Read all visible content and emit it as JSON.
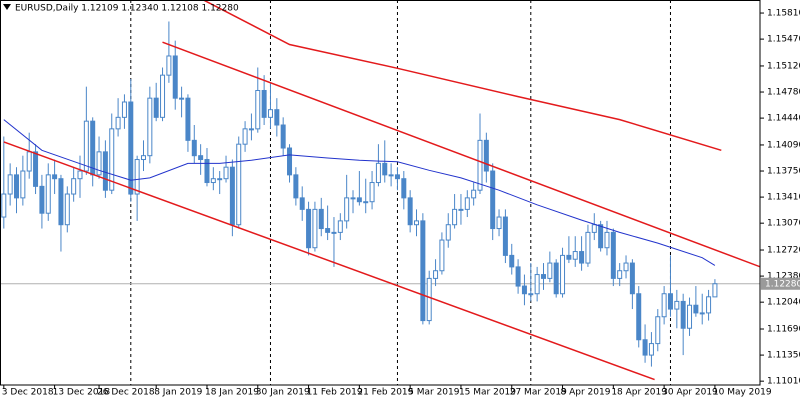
{
  "chart_data": {
    "type": "candlestick",
    "title": "EURUSD,Daily  1.12109 1.12340 1.12108 1.12280",
    "candle_color": "#4a86c8",
    "ylim": [
      1.1096,
      1.1598
    ],
    "xlim": [
      -0.6,
      119.1
    ],
    "yticks": [
      {
        "value": 1.1581,
        "label": "1.15810"
      },
      {
        "value": 1.1547,
        "label": "1.15470"
      },
      {
        "value": 1.1512,
        "label": "1.15120"
      },
      {
        "value": 1.1478,
        "label": "1.14780"
      },
      {
        "value": 1.1444,
        "label": "1.14440"
      },
      {
        "value": 1.1409,
        "label": "1.14090"
      },
      {
        "value": 1.1375,
        "label": "1.13750"
      },
      {
        "value": 1.1341,
        "label": "1.13410"
      },
      {
        "value": 1.1307,
        "label": "1.13070"
      },
      {
        "value": 1.1272,
        "label": "1.12720"
      },
      {
        "value": 1.1238,
        "label": "1.12380"
      },
      {
        "value": 1.1204,
        "label": "1.12040"
      },
      {
        "value": 1.1169,
        "label": "1.11690"
      },
      {
        "value": 1.1135,
        "label": "1.11350"
      },
      {
        "value": 1.1101,
        "label": "1.11010"
      }
    ],
    "xticks": [
      {
        "value": 0,
        "label": "3 Dec 2018"
      },
      {
        "value": 8,
        "label": "13 Dec 2018"
      },
      {
        "value": 15,
        "label": "26 Dec 2018"
      },
      {
        "value": 24,
        "label": "8 Jan 2019"
      },
      {
        "value": 32,
        "label": "18 Jan 2019"
      },
      {
        "value": 40,
        "label": "30 Jan 2019"
      },
      {
        "value": 48,
        "label": "11 Feb 2019"
      },
      {
        "value": 56,
        "label": "21 Feb 2019"
      },
      {
        "value": 64,
        "label": "5 Mar 2019"
      },
      {
        "value": 72,
        "label": "15 Mar 2019"
      },
      {
        "value": 80,
        "label": "27 Mar 2019"
      },
      {
        "value": 88,
        "label": "8 Apr 2019"
      },
      {
        "value": 96,
        "label": "18 Apr 2019"
      },
      {
        "value": 104,
        "label": "30 Apr 2019"
      },
      {
        "value": 112,
        "label": "10 May 2019"
      }
    ],
    "month_separators": [
      20,
      42,
      62,
      83,
      105
    ],
    "price_label": "1.12280",
    "ohlc": [
      [
        1.1315,
        1.142,
        1.13,
        1.1345
      ],
      [
        1.1345,
        1.1385,
        1.133,
        1.137
      ],
      [
        1.137,
        1.138,
        1.132,
        1.134
      ],
      [
        1.134,
        1.1395,
        1.133,
        1.1375
      ],
      [
        1.1375,
        1.1425,
        1.1365,
        1.14
      ],
      [
        1.14,
        1.141,
        1.1345,
        1.1355
      ],
      [
        1.1355,
        1.137,
        1.13,
        1.132
      ],
      [
        1.132,
        1.1385,
        1.131,
        1.137
      ],
      [
        1.137,
        1.139,
        1.1345,
        1.1365
      ],
      [
        1.1365,
        1.137,
        1.127,
        1.1305
      ],
      [
        1.1305,
        1.1355,
        1.1295,
        1.1345
      ],
      [
        1.1345,
        1.138,
        1.1335,
        1.1365
      ],
      [
        1.1365,
        1.1395,
        1.134,
        1.1375
      ],
      [
        1.1375,
        1.1485,
        1.137,
        1.144
      ],
      [
        1.144,
        1.1445,
        1.1355,
        1.137
      ],
      [
        1.137,
        1.142,
        1.1365,
        1.14
      ],
      [
        1.14,
        1.1415,
        1.134,
        1.135
      ],
      [
        1.135,
        1.145,
        1.1345,
        1.143
      ],
      [
        1.143,
        1.147,
        1.142,
        1.1445
      ],
      [
        1.1445,
        1.1475,
        1.143,
        1.1465
      ],
      [
        1.1465,
        1.1495,
        1.1335,
        1.1345
      ],
      [
        1.1345,
        1.1395,
        1.131,
        1.139
      ],
      [
        1.139,
        1.1415,
        1.1375,
        1.1395
      ],
      [
        1.1395,
        1.1485,
        1.1385,
        1.147
      ],
      [
        1.147,
        1.149,
        1.144,
        1.1445
      ],
      [
        1.1445,
        1.151,
        1.144,
        1.15
      ],
      [
        1.15,
        1.157,
        1.149,
        1.1525
      ],
      [
        1.1525,
        1.1545,
        1.1455,
        1.147
      ],
      [
        1.147,
        1.1485,
        1.1445,
        1.147
      ],
      [
        1.147,
        1.1475,
        1.14,
        1.1415
      ],
      [
        1.1415,
        1.1435,
        1.1385,
        1.1395
      ],
      [
        1.1395,
        1.141,
        1.137,
        1.139
      ],
      [
        1.139,
        1.1405,
        1.1355,
        1.136
      ],
      [
        1.136,
        1.138,
        1.135,
        1.1365
      ],
      [
        1.1365,
        1.1375,
        1.1345,
        1.1365
      ],
      [
        1.1365,
        1.1395,
        1.136,
        1.138
      ],
      [
        1.138,
        1.139,
        1.129,
        1.1305
      ],
      [
        1.1305,
        1.142,
        1.13,
        1.141
      ],
      [
        1.141,
        1.144,
        1.14,
        1.143
      ],
      [
        1.143,
        1.145,
        1.1415,
        1.143
      ],
      [
        1.143,
        1.151,
        1.1425,
        1.148
      ],
      [
        1.148,
        1.15,
        1.1435,
        1.1445
      ],
      [
        1.1445,
        1.149,
        1.143,
        1.1455
      ],
      [
        1.1455,
        1.147,
        1.142,
        1.1435
      ],
      [
        1.1435,
        1.1445,
        1.1395,
        1.1405
      ],
      [
        1.1405,
        1.141,
        1.136,
        1.137
      ],
      [
        1.137,
        1.138,
        1.133,
        1.134
      ],
      [
        1.134,
        1.1355,
        1.131,
        1.1325
      ],
      [
        1.1325,
        1.1335,
        1.1265,
        1.1275
      ],
      [
        1.1275,
        1.1335,
        1.127,
        1.1325
      ],
      [
        1.1325,
        1.134,
        1.129,
        1.13
      ],
      [
        1.13,
        1.133,
        1.1285,
        1.1295
      ],
      [
        1.1295,
        1.1315,
        1.125,
        1.1295
      ],
      [
        1.1295,
        1.132,
        1.1285,
        1.131
      ],
      [
        1.131,
        1.137,
        1.13,
        1.134
      ],
      [
        1.134,
        1.135,
        1.132,
        1.134
      ],
      [
        1.134,
        1.1375,
        1.133,
        1.1335
      ],
      [
        1.1335,
        1.1365,
        1.132,
        1.1335
      ],
      [
        1.1335,
        1.1375,
        1.1325,
        1.136
      ],
      [
        1.136,
        1.141,
        1.1355,
        1.1385
      ],
      [
        1.1385,
        1.1415,
        1.136,
        1.137
      ],
      [
        1.137,
        1.1385,
        1.1355,
        1.137
      ],
      [
        1.137,
        1.138,
        1.135,
        1.1365
      ],
      [
        1.1365,
        1.1375,
        1.1325,
        1.134
      ],
      [
        1.134,
        1.135,
        1.1295,
        1.1305
      ],
      [
        1.1305,
        1.1325,
        1.129,
        1.131
      ],
      [
        1.131,
        1.132,
        1.1175,
        1.118
      ],
      [
        1.118,
        1.1245,
        1.1175,
        1.1235
      ],
      [
        1.1235,
        1.126,
        1.1225,
        1.1245
      ],
      [
        1.1245,
        1.1295,
        1.124,
        1.1285
      ],
      [
        1.1285,
        1.132,
        1.1275,
        1.1305
      ],
      [
        1.1305,
        1.1345,
        1.13,
        1.1325
      ],
      [
        1.1325,
        1.1345,
        1.1305,
        1.1325
      ],
      [
        1.1325,
        1.135,
        1.1315,
        1.134
      ],
      [
        1.134,
        1.136,
        1.133,
        1.135
      ],
      [
        1.135,
        1.145,
        1.1345,
        1.1415
      ],
      [
        1.1415,
        1.1425,
        1.136,
        1.1375
      ],
      [
        1.1375,
        1.1385,
        1.1285,
        1.13
      ],
      [
        1.13,
        1.1325,
        1.129,
        1.1315
      ],
      [
        1.1315,
        1.1325,
        1.1255,
        1.1265
      ],
      [
        1.1265,
        1.128,
        1.124,
        1.125
      ],
      [
        1.125,
        1.126,
        1.1215,
        1.1225
      ],
      [
        1.1225,
        1.124,
        1.12,
        1.1215
      ],
      [
        1.1215,
        1.1255,
        1.1205,
        1.1215
      ],
      [
        1.1215,
        1.125,
        1.1205,
        1.124
      ],
      [
        1.124,
        1.1255,
        1.122,
        1.1235
      ],
      [
        1.1235,
        1.127,
        1.123,
        1.1255
      ],
      [
        1.1255,
        1.126,
        1.121,
        1.1215
      ],
      [
        1.1215,
        1.1275,
        1.121,
        1.1265
      ],
      [
        1.1265,
        1.129,
        1.1255,
        1.126
      ],
      [
        1.126,
        1.129,
        1.125,
        1.127
      ],
      [
        1.127,
        1.129,
        1.1245,
        1.1255
      ],
      [
        1.1255,
        1.1305,
        1.125,
        1.1295
      ],
      [
        1.1295,
        1.132,
        1.1285,
        1.1305
      ],
      [
        1.1305,
        1.131,
        1.127,
        1.1275
      ],
      [
        1.1275,
        1.131,
        1.1265,
        1.1295
      ],
      [
        1.1295,
        1.13,
        1.1225,
        1.1235
      ],
      [
        1.1235,
        1.1255,
        1.1225,
        1.1245
      ],
      [
        1.1245,
        1.1265,
        1.1235,
        1.1255
      ],
      [
        1.1255,
        1.126,
        1.1195,
        1.1215
      ],
      [
        1.1215,
        1.1225,
        1.1145,
        1.1155
      ],
      [
        1.1155,
        1.1175,
        1.1125,
        1.1135
      ],
      [
        1.1135,
        1.1165,
        1.112,
        1.115
      ],
      [
        1.115,
        1.1195,
        1.114,
        1.1185
      ],
      [
        1.1185,
        1.1225,
        1.1175,
        1.1215
      ],
      [
        1.1215,
        1.1265,
        1.1185,
        1.1195
      ],
      [
        1.1195,
        1.122,
        1.117,
        1.1205
      ],
      [
        1.1205,
        1.1215,
        1.1135,
        1.117
      ],
      [
        1.117,
        1.121,
        1.116,
        1.12
      ],
      [
        1.12,
        1.1225,
        1.1185,
        1.119
      ],
      [
        1.119,
        1.1215,
        1.1175,
        1.119
      ],
      [
        1.119,
        1.122,
        1.118,
        1.1211
      ],
      [
        1.12109,
        1.1234,
        1.12108,
        1.1228
      ]
    ],
    "moving_averages": [
      {
        "color": "#2233cc",
        "x": [
          0,
          6,
          15,
          20,
          23,
          29,
          34,
          39,
          45,
          51,
          56,
          62,
          67,
          72,
          78,
          84,
          91,
          97,
          103,
          110,
          112
        ],
        "values": [
          1.1442,
          1.1402,
          1.1376,
          1.1363,
          1.1366,
          1.1385,
          1.1385,
          1.1389,
          1.1396,
          1.1392,
          1.1389,
          1.1387,
          1.1376,
          1.1366,
          1.135,
          1.1331,
          1.1311,
          1.1295,
          1.1281,
          1.1262,
          1.1252
        ]
      },
      {
        "color": "#e31a1c",
        "x": [
          31,
          45,
          62,
          81,
          97,
          113
        ],
        "values": [
          1.16,
          1.154,
          1.1509,
          1.1472,
          1.1442,
          1.1402
        ]
      }
    ],
    "trend_lines": [
      {
        "color": "#e31a1c",
        "x": [
          0,
          102.5
        ],
        "values": [
          1.1413,
          1.1103
        ]
      },
      {
        "color": "#e31a1c",
        "x": [
          25,
          119.5
        ],
        "values": [
          1.1543,
          1.1249
        ]
      }
    ]
  }
}
